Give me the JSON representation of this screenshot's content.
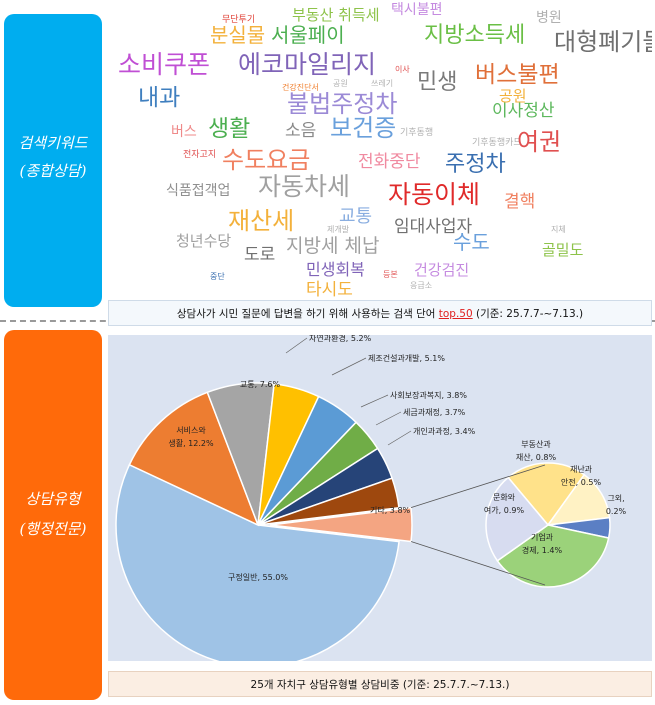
{
  "sidebar": {
    "top_label_line1": "검색키워드",
    "top_label_line2": "(종합상담)",
    "bottom_label_line1": "상담유형",
    "bottom_label_line2": "(행정전문)",
    "top_color": "#00adef",
    "bottom_color": "#ff6a0a"
  },
  "word_cloud": {
    "words": [
      {
        "text": "무단투기",
        "color": "#e0443a"
      },
      {
        "text": "부동산 취득세",
        "color": "#8ec34a"
      },
      {
        "text": "택시불편",
        "color": "#c58be0"
      },
      {
        "text": "병원",
        "color": "#b0b0b0"
      },
      {
        "text": "분실물",
        "color": "#f3b13b"
      },
      {
        "text": "서울페이",
        "color": "#4caf50"
      },
      {
        "text": "지방소득세",
        "color": "#6abf45"
      },
      {
        "text": "대형폐기물",
        "color": "#707070"
      },
      {
        "text": "소비쿠폰",
        "color": "#c04fd4"
      },
      {
        "text": "에코마일리지",
        "color": "#8064b8"
      },
      {
        "text": "건강진단서",
        "color": "#f08030"
      },
      {
        "text": "공원",
        "color": "#b0b0b0"
      },
      {
        "text": "쓰레기",
        "color": "#b0b0b0"
      },
      {
        "text": "이사",
        "color": "#e05050"
      },
      {
        "text": "민생",
        "color": "#7a7a7a"
      },
      {
        "text": "내과",
        "color": "#3f7fbf"
      },
      {
        "text": "불법주정차",
        "color": "#9b8ad6"
      },
      {
        "text": "이사정산",
        "color": "#5db85d"
      },
      {
        "text": "버스불편",
        "color": "#e0703a"
      },
      {
        "text": "공원",
        "color": "#f3b13b"
      },
      {
        "text": "버스",
        "color": "#ef8a8a"
      },
      {
        "text": "생활",
        "color": "#4caf50"
      },
      {
        "text": "소음",
        "color": "#8a8a8a"
      },
      {
        "text": "보건증",
        "color": "#6aa0dc"
      },
      {
        "text": "기후동행",
        "color": "#b0b0b0"
      },
      {
        "text": "기후동행카드",
        "color": "#b0b0b0"
      },
      {
        "text": "여권",
        "color": "#e05050"
      },
      {
        "text": "전자고지",
        "color": "#e05050"
      },
      {
        "text": "수도요금",
        "color": "#f08060"
      },
      {
        "text": "전화중단",
        "color": "#f08aa0"
      },
      {
        "text": "주정차",
        "color": "#3a6fb0"
      },
      {
        "text": "식품접객업",
        "color": "#909090"
      },
      {
        "text": "자동차세",
        "color": "#a0a0a0"
      },
      {
        "text": "자동이체",
        "color": "#e02a2a"
      },
      {
        "text": "결핵",
        "color": "#f08060"
      },
      {
        "text": "재산세",
        "color": "#f3b13b"
      },
      {
        "text": "교통",
        "color": "#8aaee0"
      },
      {
        "text": "제개발",
        "color": "#b0b0b0"
      },
      {
        "text": "임대사업자",
        "color": "#707070"
      },
      {
        "text": "지체",
        "color": "#b0b0b0"
      },
      {
        "text": "청년수당",
        "color": "#a0a0a0"
      },
      {
        "text": "도로",
        "color": "#707070"
      },
      {
        "text": "지방세 체납",
        "color": "#a0a0a0"
      },
      {
        "text": "수도",
        "color": "#6aa0dc"
      },
      {
        "text": "골밀도",
        "color": "#8ec34a"
      },
      {
        "text": "민생회복",
        "color": "#8064b8"
      },
      {
        "text": "건강검진",
        "color": "#c58be0"
      },
      {
        "text": "중단",
        "color": "#3a6fb0"
      },
      {
        "text": "등본",
        "color": "#e05050"
      },
      {
        "text": "응급소",
        "color": "#b0b0b0"
      },
      {
        "text": "타시도",
        "color": "#f3b13b"
      }
    ]
  },
  "top_caption": {
    "prefix": "상담사가 시민 질문에 답변을 하기 위해 사용하는 검색 단어 ",
    "highlight": "top.50",
    "suffix": " (기준: 25.7.7-~7.13.)"
  },
  "bottom_caption": "25개 자치구 상담유형별 상담비중 (기준: 25.7.7.~7.13.)",
  "chart_data": {
    "type": "pie",
    "title": "",
    "slices": [
      {
        "name": "구정일반",
        "value": 55.0,
        "label": "구정일반, 55.0%",
        "color": "#9fc3e6"
      },
      {
        "name": "서비스와 생활",
        "value": 12.2,
        "label": "서비스와 생활, 12.2%",
        "color": "#ed7d31"
      },
      {
        "name": "교통",
        "value": 7.6,
        "label": "교통, 7.6%",
        "color": "#a5a5a5"
      },
      {
        "name": "자연과환경",
        "value": 5.2,
        "label": "자연과환경, 5.2%",
        "color": "#ffc000"
      },
      {
        "name": "제조건설과개발",
        "value": 5.1,
        "label": "제조건설과개발, 5.1%",
        "color": "#5b9bd5"
      },
      {
        "name": "사회보장과복지",
        "value": 3.8,
        "label": "사회보장과복지, 3.8%",
        "color": "#70ad47"
      },
      {
        "name": "세금과재정",
        "value": 3.7,
        "label": "세금과재정, 3.7%",
        "color": "#264478"
      },
      {
        "name": "개인과과정",
        "value": 3.4,
        "label": "개인과과정, 3.4%",
        "color": "#9e480e"
      },
      {
        "name": "기타",
        "value": 3.8,
        "label": "기타, 3.8%",
        "color": "#f4a582"
      }
    ],
    "sub_pie": {
      "of": "기타",
      "slices": [
        {
          "name": "부동산과 재산",
          "value": 0.8,
          "label_line1": "부동산과",
          "label_line2": "재산, 0.8%",
          "color": "#ffe28a"
        },
        {
          "name": "재난과 안전",
          "value": 0.5,
          "label_line1": "재난과",
          "label_line2": "안전, 0.5%",
          "color": "#fff2c4"
        },
        {
          "name": "그외",
          "value": 0.2,
          "label_line1": "그외,",
          "label_line2": "0.2%",
          "color": "#5b7fc4"
        },
        {
          "name": "기업과 경제",
          "value": 1.4,
          "label_line1": "기업과",
          "label_line2": "경제, 1.4%",
          "color": "#9bd27a"
        },
        {
          "name": "문화와 여가",
          "value": 0.9,
          "label_line1": "문화와",
          "label_line2": "여가, 0.9%",
          "color": "#d7dcf0"
        }
      ]
    }
  }
}
